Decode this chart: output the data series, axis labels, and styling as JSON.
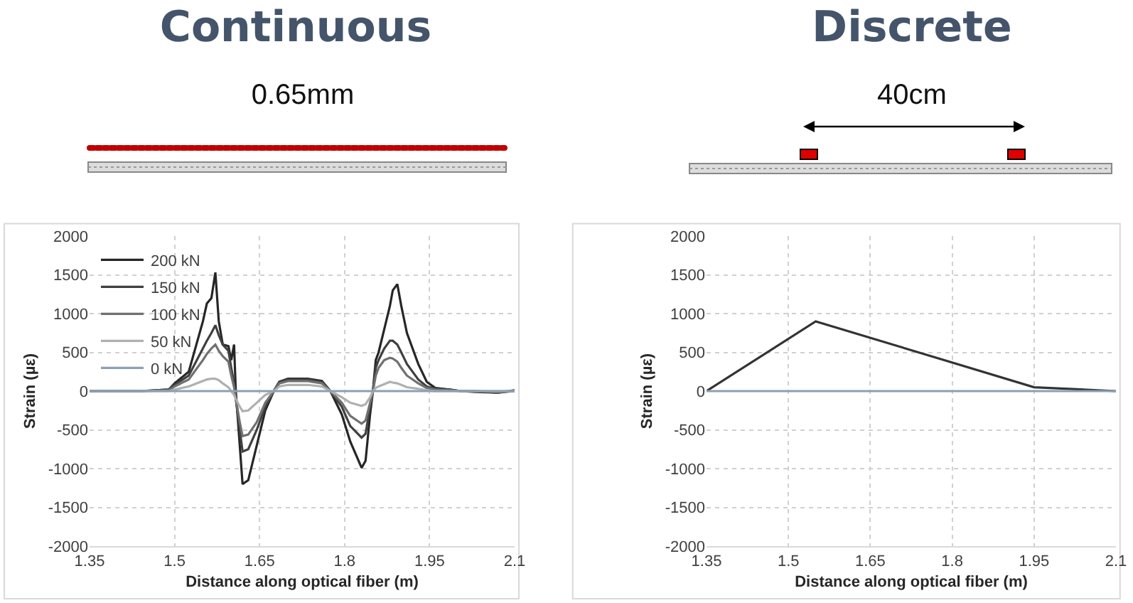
{
  "chart_data": [
    {
      "type": "line",
      "title": "Continuous",
      "subtitle": "0.65mm",
      "xlabel": "Distance along optical fiber (m)",
      "ylabel": "Strain (µε)",
      "x": [
        1.35,
        1.44,
        1.49,
        1.5,
        1.525,
        1.55,
        1.557,
        1.565,
        1.572,
        1.578,
        1.585,
        1.595,
        1.6,
        1.605,
        1.608,
        1.615,
        1.62,
        1.63,
        1.645,
        1.66,
        1.675,
        1.685,
        1.7,
        1.735,
        1.76,
        1.775,
        1.795,
        1.81,
        1.83,
        1.837,
        1.845,
        1.85,
        1.855,
        1.86,
        1.87,
        1.88,
        1.885,
        1.893,
        1.9,
        1.91,
        1.93,
        1.945,
        1.96,
        1.985,
        2.005,
        2.03,
        2.07,
        2.1
      ],
      "series": [
        {
          "name": "200 kN",
          "color": "#262626",
          "values": [
            0,
            0,
            20,
            100,
            250,
            900,
            1130,
            1200,
            1530,
            900,
            600,
            580,
            400,
            600,
            0,
            -700,
            -1200,
            -1150,
            -700,
            -250,
            0,
            120,
            160,
            160,
            130,
            0,
            -300,
            -650,
            -990,
            -900,
            -300,
            0,
            400,
            500,
            800,
            1100,
            1300,
            1380,
            1100,
            750,
            350,
            120,
            40,
            20,
            0,
            -10,
            -20,
            10
          ]
        },
        {
          "name": "150 kN",
          "color": "#404040",
          "values": [
            0,
            0,
            20,
            80,
            200,
            550,
            650,
            750,
            850,
            720,
            600,
            520,
            300,
            100,
            -100,
            -500,
            -780,
            -750,
            -500,
            -200,
            0,
            120,
            150,
            150,
            120,
            0,
            -200,
            -450,
            -600,
            -550,
            -200,
            0,
            300,
            400,
            550,
            650,
            650,
            600,
            500,
            350,
            150,
            60,
            30,
            20,
            0,
            0,
            -20,
            0
          ]
        },
        {
          "name": "100 kN",
          "color": "#707070",
          "values": [
            0,
            0,
            10,
            60,
            150,
            400,
            480,
            550,
            600,
            520,
            450,
            380,
            200,
            50,
            -100,
            -400,
            -580,
            -560,
            -400,
            -150,
            0,
            100,
            130,
            130,
            100,
            0,
            -150,
            -320,
            -420,
            -380,
            -150,
            0,
            200,
            300,
            400,
            430,
            420,
            380,
            300,
            200,
            100,
            40,
            20,
            10,
            0,
            0,
            -10,
            0
          ]
        },
        {
          "name": "50 kN",
          "color": "#b0b0b0",
          "values": [
            0,
            0,
            0,
            20,
            60,
            130,
            150,
            160,
            160,
            140,
            100,
            50,
            0,
            -50,
            -100,
            -200,
            -260,
            -250,
            -150,
            -50,
            0,
            60,
            80,
            80,
            60,
            0,
            -80,
            -150,
            -190,
            -170,
            -80,
            0,
            40,
            60,
            90,
            120,
            110,
            100,
            80,
            50,
            30,
            10,
            0,
            0,
            0,
            0,
            0,
            0
          ]
        },
        {
          "name": "0 kN",
          "color": "#8ea0b4",
          "values": [
            0,
            0,
            0,
            0,
            0,
            0,
            0,
            0,
            0,
            0,
            0,
            0,
            0,
            0,
            0,
            0,
            0,
            0,
            0,
            0,
            0,
            0,
            0,
            0,
            0,
            0,
            0,
            0,
            0,
            0,
            0,
            0,
            0,
            0,
            0,
            0,
            0,
            0,
            0,
            0,
            0,
            0,
            0,
            0,
            0,
            0,
            0,
            0
          ]
        }
      ],
      "xlim": [
        1.35,
        2.1
      ],
      "xticks": [
        1.35,
        1.5,
        1.65,
        1.8,
        1.95,
        2.1
      ],
      "ylim": [
        -2000,
        2000
      ],
      "yticks": [
        -2000,
        -1500,
        -1000,
        -500,
        0,
        500,
        1000,
        1500,
        2000
      ],
      "grid": true,
      "legend": "top left",
      "line_style": "solid",
      "marker": "none"
    },
    {
      "type": "line",
      "title": "Discrete",
      "subtitle": "40cm",
      "xlabel": "Distance along optical fiber (m)",
      "ylabel": "Strain (µε)",
      "x": [
        1.35,
        1.55,
        1.95,
        2.1
      ],
      "series": [
        {
          "color": "#333333",
          "values": [
            0,
            900,
            50,
            0
          ]
        },
        {
          "color": "#8ea0b4",
          "x": [
            1.35,
            2.1
          ],
          "values": [
            0,
            0
          ]
        }
      ],
      "xlim": [
        1.35,
        2.1
      ],
      "xticks": [
        1.35,
        1.5,
        1.65,
        1.8,
        1.95,
        2.1
      ],
      "ylim": [
        -2000,
        2000
      ],
      "yticks": [
        -2000,
        -1500,
        -1000,
        -500,
        0,
        500,
        1000,
        1500,
        2000
      ],
      "grid": true,
      "legend": false,
      "line_style": "solid",
      "marker": "none"
    }
  ]
}
